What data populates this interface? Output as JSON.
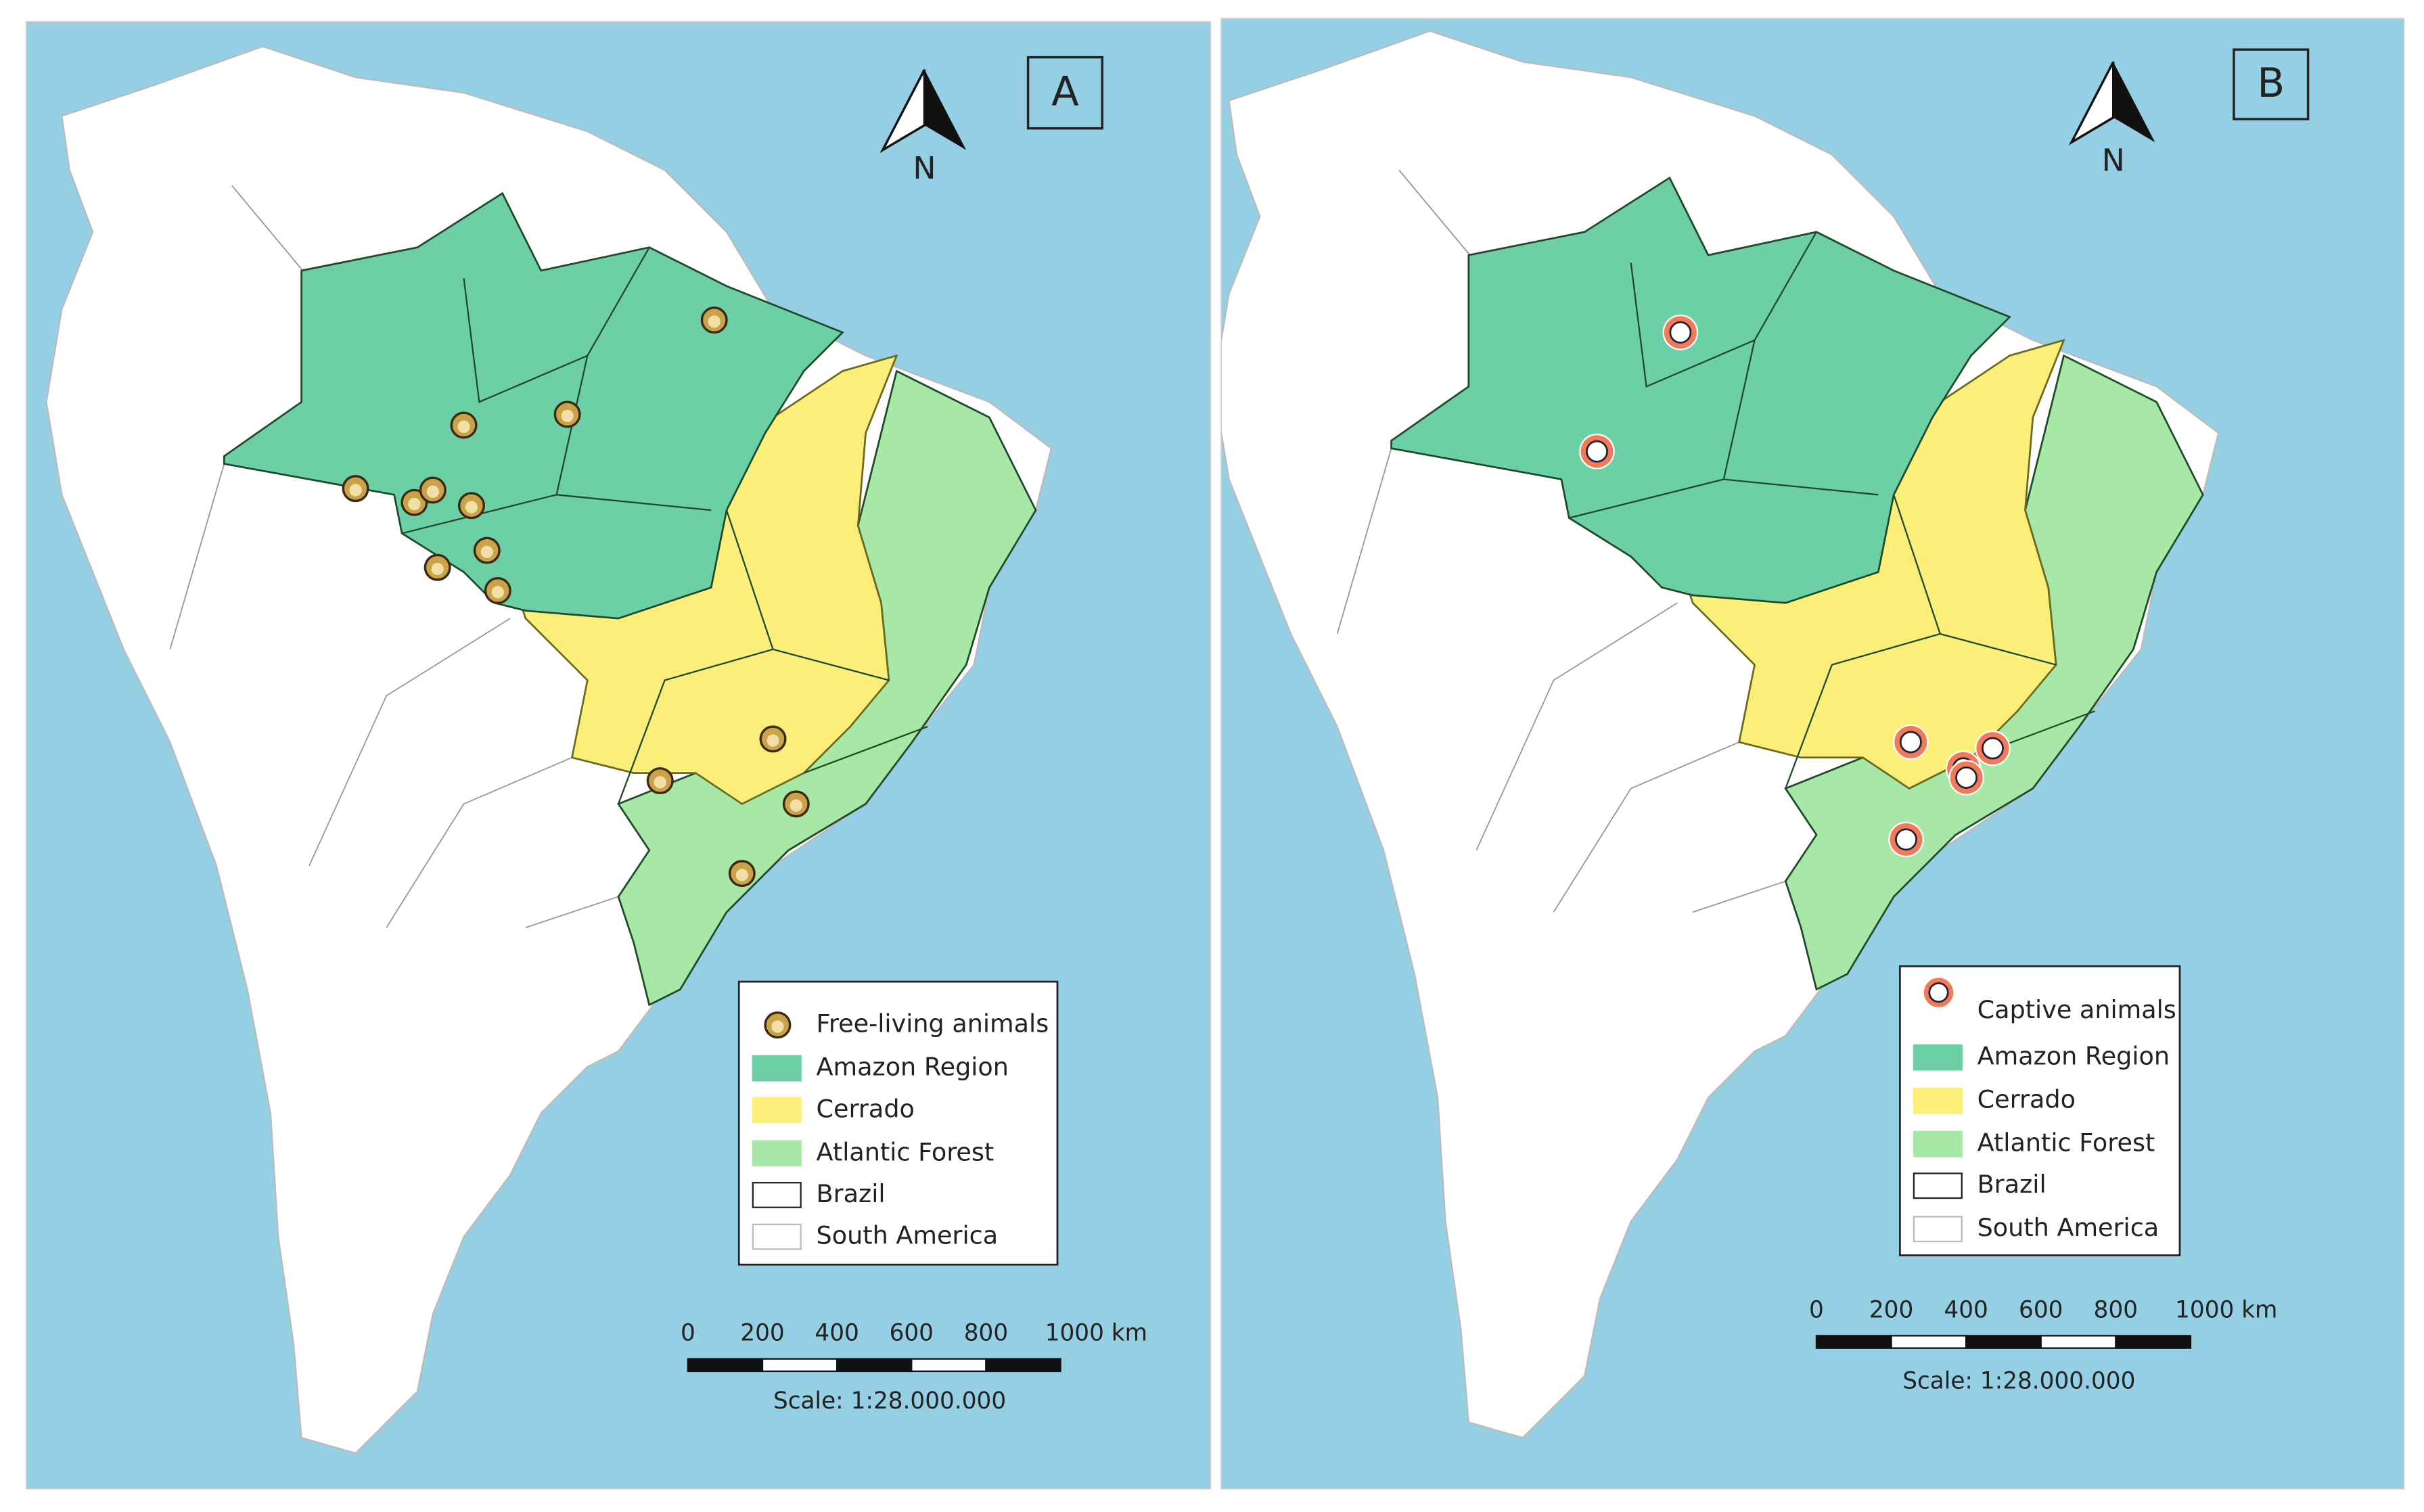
{
  "panels": [
    {
      "label": "A",
      "north": "N",
      "legend": [
        "Free-living animals",
        "Amazon Region",
        "Cerrado",
        "Atlantic Forest",
        "Brazil",
        "South America"
      ],
      "scale_ticks": [
        "0",
        "200",
        "400",
        "600",
        "800",
        "1000 km"
      ],
      "scale_text": "Scale: 1:28.000.000"
    },
    {
      "label": "B",
      "north": "N",
      "legend": [
        "Captive animals",
        "Amazon Region",
        "Cerrado",
        "Atlantic Forest",
        "Brazil",
        "South America"
      ],
      "scale_ticks": [
        "0",
        "200",
        "400",
        "600",
        "800",
        "1000 km"
      ],
      "scale_text": "Scale: 1:28.000.000"
    }
  ]
}
